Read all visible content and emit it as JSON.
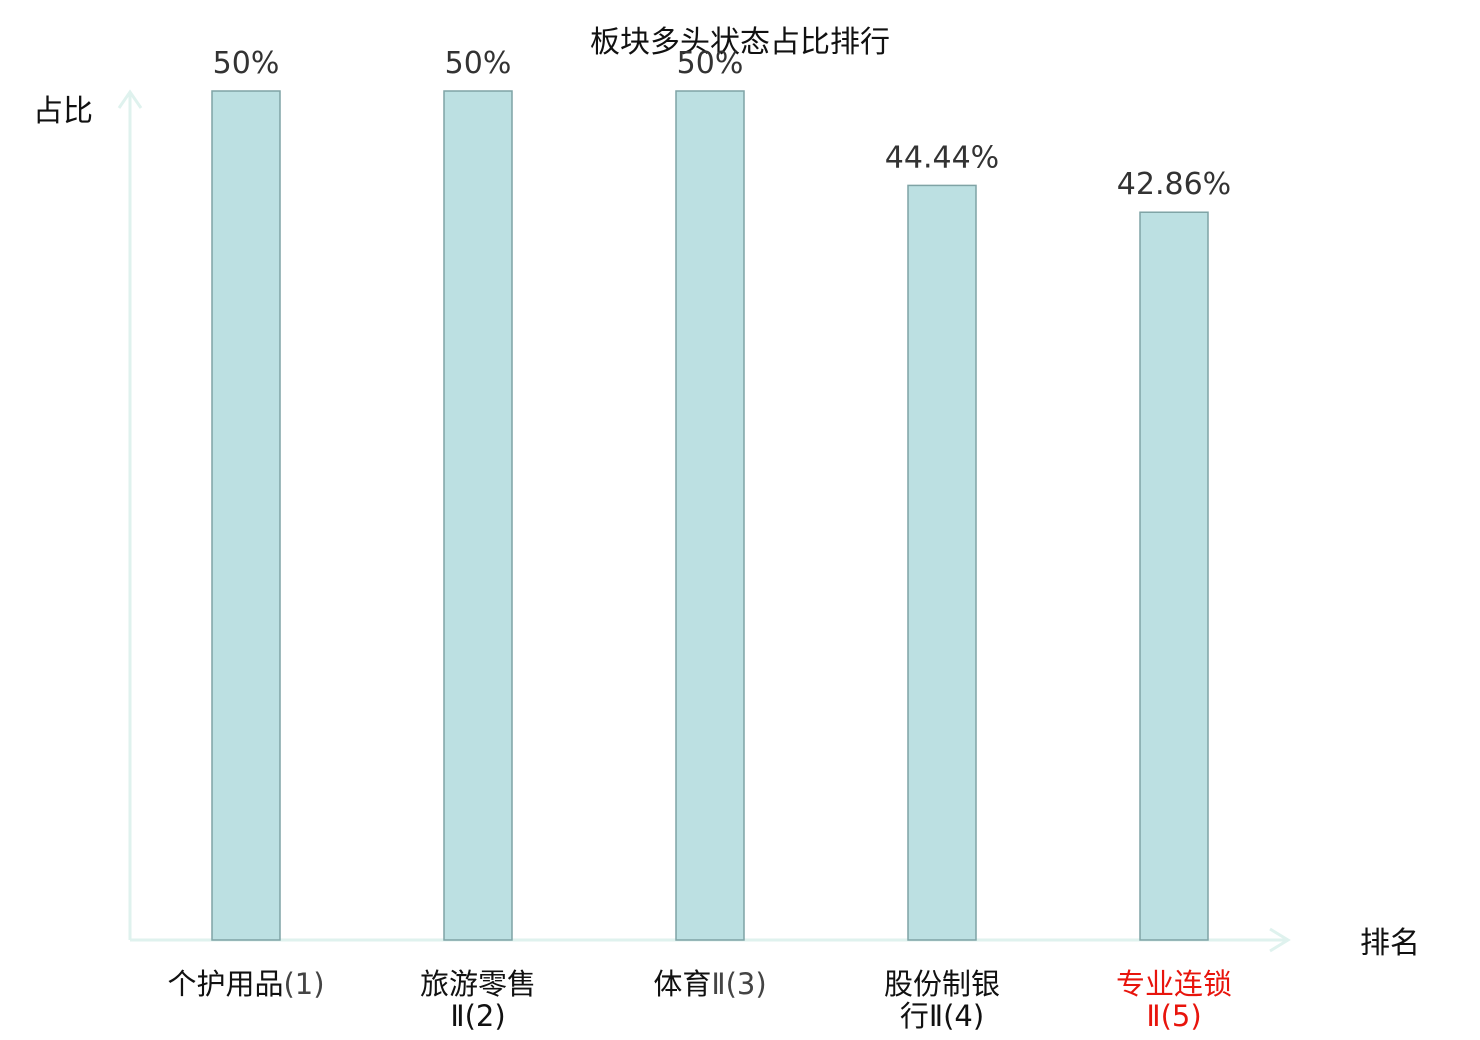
{
  "chart_data": {
    "type": "bar",
    "title": "板块多头状态占比排行",
    "ylabel": "占比",
    "xlabel": "排名",
    "ylim": [
      0,
      50
    ],
    "grid": false,
    "categories": [
      {
        "name": "个护用品",
        "rank": "(1)",
        "line1": "个护用品",
        "line1_rank": "(1)",
        "line2": "",
        "highlight": false
      },
      {
        "name": "旅游零售Ⅱ",
        "rank": "(2)",
        "line1": "旅游零售",
        "line1_rank": "",
        "line2": "Ⅱ(2)",
        "highlight": false
      },
      {
        "name": "体育Ⅱ",
        "rank": "(3)",
        "line1": "体育",
        "line1_rank": "Ⅱ(3)",
        "line2": "",
        "highlight": false
      },
      {
        "name": "股份制银行Ⅱ",
        "rank": "(4)",
        "line1": "股份制银",
        "line1_rank": "",
        "line2": "行Ⅱ(4)",
        "highlight": false
      },
      {
        "name": "专业连锁Ⅱ",
        "rank": "(5)",
        "line1": "专业连锁",
        "line1_rank": "",
        "line2": "Ⅱ(5)",
        "highlight": true
      }
    ],
    "values": [
      50,
      50,
      50,
      44.44,
      42.86
    ],
    "value_labels": [
      "50%",
      "50%",
      "50%",
      "44.44%",
      "42.86%"
    ],
    "colors": {
      "bar_fill": "#bce0e2",
      "bar_stroke": "#7fa3a5",
      "axis": "#dff2ee",
      "highlight_label": "#e8140c"
    }
  }
}
